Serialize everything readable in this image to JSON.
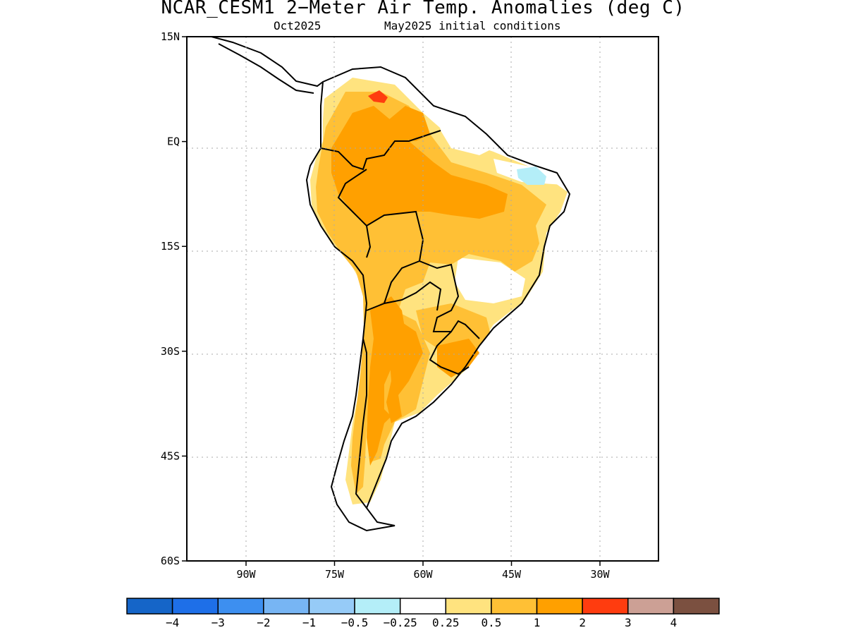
{
  "title": "NCAR_CESM1 2−Meter Air Temp. Anomalies (deg C)",
  "subtitle_left": "Oct2025",
  "subtitle_right": "May2025 initial conditions",
  "lat_ticks": [
    {
      "value": 15,
      "label": "15N"
    },
    {
      "value": 0,
      "label": "EQ"
    },
    {
      "value": -15,
      "label": "15S"
    },
    {
      "value": -30,
      "label": "30S"
    },
    {
      "value": -45,
      "label": "45S"
    },
    {
      "value": -60,
      "label": "60S"
    }
  ],
  "lon_ticks": [
    {
      "value": -90,
      "label": "90W"
    },
    {
      "value": -75,
      "label": "75W"
    },
    {
      "value": -60,
      "label": "60W"
    },
    {
      "value": -45,
      "label": "45W"
    },
    {
      "value": -30,
      "label": "30W"
    }
  ],
  "colorbar": {
    "colors": [
      "#1565c8",
      "#1e6fe8",
      "#3d8ff0",
      "#77b5f4",
      "#96cbf7",
      "#b4eef8",
      "#ffffff",
      "#ffe37f",
      "#ffc035",
      "#ffa000",
      "#ff3c0f",
      "#cca095",
      "#7b5040"
    ],
    "labels": [
      "−4",
      "−3",
      "−2",
      "−1",
      "−0.5",
      "−0.25",
      "0.25",
      "0.5",
      "1",
      "2",
      "3",
      "4"
    ]
  }
}
